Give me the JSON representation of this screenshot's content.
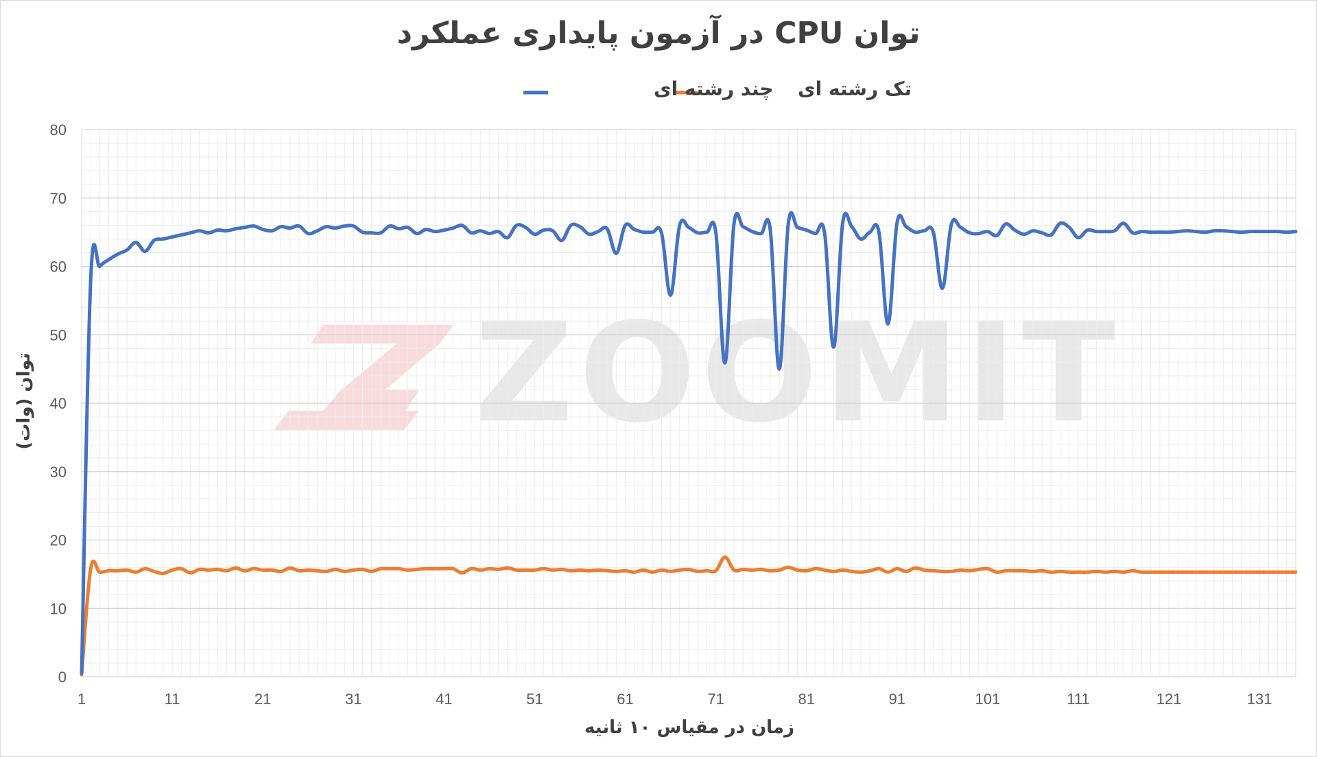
{
  "chart_data": {
    "type": "line",
    "title": "توان CPU در آزمون پایداری عملکرد",
    "xlabel": "زمان در مقیاس ۱۰ ثانیه",
    "ylabel": "توان (وات)",
    "xlim": [
      1,
      135
    ],
    "ylim": [
      0,
      80
    ],
    "y_ticks": [
      "0",
      "10",
      "20",
      "30",
      "40",
      "50",
      "60",
      "70",
      "80"
    ],
    "x_ticks": [
      "1",
      "11",
      "21",
      "31",
      "41",
      "51",
      "61",
      "71",
      "81",
      "91",
      "101",
      "111",
      "121",
      "131"
    ],
    "grid": true,
    "legend_position": "top",
    "watermark": "ZOOMIT",
    "series": [
      {
        "name": "چند رشته ای",
        "color": "#4472C4",
        "x": [
          1,
          2,
          3,
          4,
          5,
          6,
          7,
          8,
          9,
          10,
          11,
          12,
          13,
          14,
          15,
          16,
          17,
          18,
          19,
          20,
          21,
          22,
          23,
          24,
          25,
          26,
          27,
          28,
          29,
          30,
          31,
          32,
          33,
          34,
          35,
          36,
          37,
          38,
          39,
          40,
          41,
          42,
          43,
          44,
          45,
          46,
          47,
          48,
          49,
          50,
          51,
          52,
          53,
          54,
          55,
          56,
          57,
          58,
          59,
          60,
          61,
          62,
          63,
          64,
          65,
          66,
          67,
          68,
          69,
          70,
          71,
          72,
          73,
          74,
          75,
          76,
          77,
          78,
          79,
          80,
          81,
          82,
          83,
          84,
          85,
          86,
          87,
          88,
          89,
          90,
          91,
          92,
          93,
          94,
          95,
          96,
          97,
          98,
          99,
          100,
          101,
          102,
          103,
          104,
          105,
          106,
          107,
          108,
          109,
          110,
          111,
          112,
          113,
          114,
          115,
          116,
          117,
          118,
          119,
          120,
          121,
          122,
          123,
          124,
          125,
          126,
          127,
          128,
          129,
          130,
          131,
          132,
          133,
          134,
          135
        ],
        "values": [
          0.5,
          58,
          60,
          61,
          61.8,
          62.4,
          63.5,
          62.2,
          63.8,
          64,
          64.3,
          64.6,
          64.9,
          65.2,
          64.9,
          65.3,
          65.2,
          65.5,
          65.7,
          65.9,
          65.4,
          65.2,
          65.8,
          65.6,
          65.9,
          64.8,
          65.2,
          65.8,
          65.6,
          65.9,
          65.9,
          65,
          64.9,
          64.9,
          65.9,
          65.5,
          65.7,
          64.8,
          65.4,
          65.1,
          65.3,
          65.6,
          66,
          64.9,
          65.2,
          64.8,
          65.1,
          64.2,
          66,
          65.7,
          64.7,
          65.3,
          65.2,
          63.8,
          66,
          65.8,
          64.7,
          65.1,
          65.5,
          61.9,
          66,
          65.4,
          65,
          65,
          64.9,
          55.8,
          66,
          65.7,
          64.9,
          65,
          64.9,
          45.9,
          66.2,
          65.8,
          65.1,
          64.8,
          65.4,
          45,
          66.3,
          65.7,
          65.3,
          64.8,
          64.9,
          48.2,
          66.4,
          65.8,
          64,
          65,
          65,
          51.6,
          66.4,
          65.8,
          65,
          65.2,
          65,
          56.8,
          66.2,
          65.7,
          64.9,
          64.8,
          65.1,
          64.5,
          66.2,
          65.3,
          64.7,
          65.2,
          64.9,
          64.6,
          66.3,
          65.7,
          64.2,
          65.3,
          65.1,
          65.1,
          65.2,
          66.3,
          64.9,
          65.1,
          65,
          65,
          65,
          65.1,
          65.2,
          65.1,
          65,
          65.2,
          65.2,
          65.1,
          65,
          65.1,
          65.1,
          65.1,
          65.1,
          65,
          65.1
        ],
        "note_dips": []
      },
      {
        "name": "تک رشته ای",
        "color": "#ED7D31",
        "x": [
          1,
          2,
          3,
          4,
          5,
          6,
          7,
          8,
          9,
          10,
          11,
          12,
          13,
          14,
          15,
          16,
          17,
          18,
          19,
          20,
          21,
          22,
          23,
          24,
          25,
          26,
          27,
          28,
          29,
          30,
          31,
          32,
          33,
          34,
          35,
          36,
          37,
          38,
          39,
          40,
          41,
          42,
          43,
          44,
          45,
          46,
          47,
          48,
          49,
          50,
          51,
          52,
          53,
          54,
          55,
          56,
          57,
          58,
          59,
          60,
          61,
          62,
          63,
          64,
          65,
          66,
          67,
          68,
          69,
          70,
          71,
          72,
          73,
          74,
          75,
          76,
          77,
          78,
          79,
          80,
          81,
          82,
          83,
          84,
          85,
          86,
          87,
          88,
          89,
          90,
          91,
          92,
          93,
          94,
          95,
          96,
          97,
          98,
          99,
          100,
          101,
          102,
          103,
          104,
          105,
          106,
          107,
          108,
          109,
          110,
          111,
          112,
          113,
          114,
          115,
          116,
          117,
          118,
          119,
          120,
          121,
          122,
          123,
          124,
          125,
          126,
          127,
          128,
          129,
          130,
          131,
          132,
          133,
          134,
          135
        ],
        "values": [
          0.3,
          15.8,
          15.3,
          15.5,
          15.5,
          15.6,
          15.3,
          15.8,
          15.4,
          15.1,
          15.6,
          15.8,
          15.2,
          15.7,
          15.6,
          15.7,
          15.5,
          15.9,
          15.5,
          15.8,
          15.6,
          15.6,
          15.4,
          15.9,
          15.5,
          15.6,
          15.5,
          15.4,
          15.7,
          15.4,
          15.6,
          15.7,
          15.4,
          15.8,
          15.8,
          15.8,
          15.6,
          15.7,
          15.8,
          15.8,
          15.8,
          15.8,
          15.2,
          15.8,
          15.6,
          15.8,
          15.7,
          15.9,
          15.6,
          15.6,
          15.6,
          15.8,
          15.6,
          15.7,
          15.5,
          15.6,
          15.5,
          15.6,
          15.5,
          15.4,
          15.5,
          15.3,
          15.6,
          15.3,
          15.6,
          15.4,
          15.6,
          15.7,
          15.4,
          15.5,
          15.5,
          17.5,
          15.6,
          15.7,
          15.6,
          15.7,
          15.5,
          15.6,
          16,
          15.6,
          15.5,
          15.8,
          15.6,
          15.4,
          15.6,
          15.4,
          15.3,
          15.5,
          15.8,
          15.3,
          15.8,
          15.4,
          15.9,
          15.6,
          15.5,
          15.4,
          15.4,
          15.6,
          15.5,
          15.7,
          15.8,
          15.3,
          15.5,
          15.5,
          15.5,
          15.4,
          15.5,
          15.3,
          15.4,
          15.3,
          15.3,
          15.3,
          15.4,
          15.3,
          15.4,
          15.3,
          15.5,
          15.3,
          15.3,
          15.3,
          15.3,
          15.3,
          15.3,
          15.3,
          15.3,
          15.3,
          15.3,
          15.3,
          15.3,
          15.3,
          15.3,
          15.3,
          15.3,
          15.3,
          15.3
        ]
      }
    ]
  }
}
